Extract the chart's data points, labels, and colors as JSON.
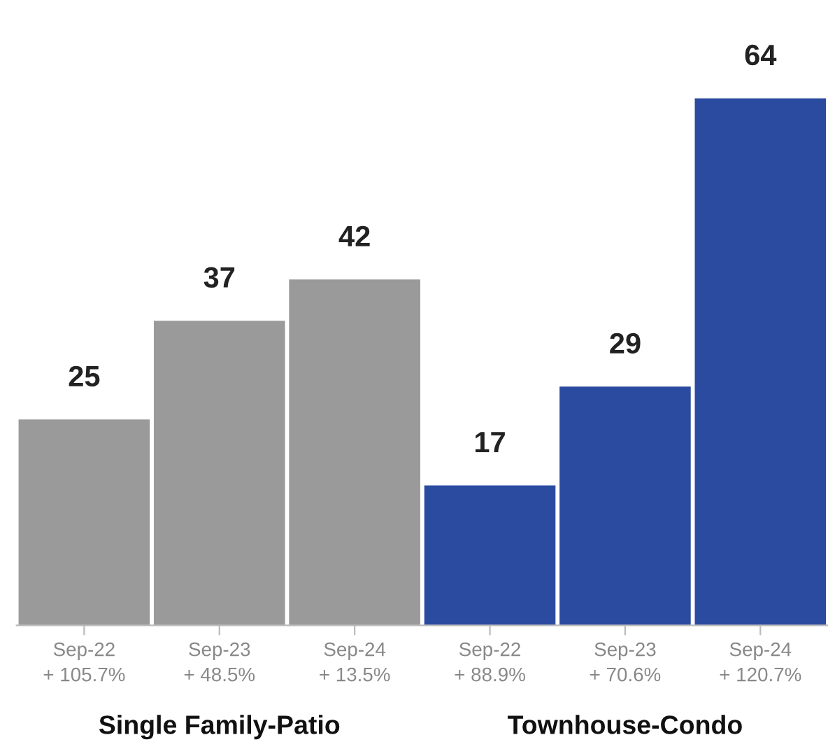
{
  "chart_data": {
    "type": "bar",
    "categories": [
      "Sep-22\n+ 105.7%",
      "Sep-23\n+ 48.5%",
      "Sep-24\n+ 13.5%",
      "Sep-22\n+ 88.9%",
      "Sep-23\n+ 70.6%",
      "Sep-24\n+ 120.7%"
    ],
    "series": [
      {
        "color": "#9a9a9a",
        "values": [
          25,
          37,
          42,
          null,
          null,
          null
        ]
      },
      {
        "color": "#2a4b9f",
        "values": [
          null,
          null,
          null,
          17,
          29,
          64
        ]
      }
    ],
    "data_labels": true,
    "annotations": [
      "Single Family-Patio",
      "Townhouse-Condo"
    ]
  }
}
